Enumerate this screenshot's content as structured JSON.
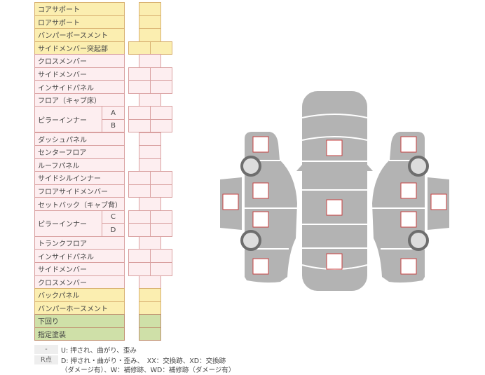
{
  "rows": [
    {
      "label": "コアサポート",
      "color": "yellow",
      "cells": 1
    },
    {
      "label": "ロアサポート",
      "color": "yellow",
      "cells": 1
    },
    {
      "label": "バンパーボースメント",
      "color": "yellow",
      "cells": 1
    },
    {
      "label": "サイドメンバー突起部",
      "color": "yellow",
      "cells": 2
    },
    {
      "label": "クロスメンバー",
      "color": "pink",
      "cells": 1
    },
    {
      "label": "サイドメンバー",
      "color": "pink",
      "cells": 2
    },
    {
      "label": "インサイドパネル",
      "color": "pink",
      "cells": 2
    },
    {
      "label": "フロア（キャブ床）",
      "color": "pink",
      "cells": 1
    },
    {
      "label": "ピラーインナー",
      "sub": "A",
      "color": "pink",
      "cells": 2
    },
    {
      "label": "",
      "sub": "B",
      "color": "pink",
      "cells": 2
    },
    {
      "label": "ダッシュパネル",
      "color": "pink",
      "cells": 1
    },
    {
      "label": "センターフロア",
      "color": "pink",
      "cells": 1
    },
    {
      "label": "ルーフパネル",
      "color": "pink",
      "cells": 1
    },
    {
      "label": "サイドシルインナー",
      "color": "pink",
      "cells": 2
    },
    {
      "label": "フロアサイドメンバー",
      "color": "pink",
      "cells": 2
    },
    {
      "label": "セットバック（キャブ背）",
      "color": "pink",
      "cells": 1
    },
    {
      "label": "ピラーインナー",
      "sub": "C",
      "color": "pink",
      "cells": 2
    },
    {
      "label": "",
      "sub": "D",
      "color": "pink",
      "cells": 2
    },
    {
      "label": "トランクフロア",
      "color": "pink",
      "cells": 1
    },
    {
      "label": "インサイドパネル",
      "color": "pink",
      "cells": 2
    },
    {
      "label": "サイドメンバー",
      "color": "pink",
      "cells": 2
    },
    {
      "label": "クロスメンバー",
      "color": "pink",
      "cells": 1
    },
    {
      "label": "バックパネル",
      "color": "yellow",
      "cells": 1
    },
    {
      "label": "バンパーホースメント",
      "color": "yellow",
      "cells": 1
    },
    {
      "label": "下回り",
      "color": "green",
      "cells": 1
    },
    {
      "label": "指定塗装",
      "color": "green",
      "cells": 1
    }
  ],
  "legend": [
    {
      "key": "-",
      "text": "U: 押され、曲がり、歪み"
    },
    {
      "key": "R点",
      "text": "D: 押され・曲がり・歪み、　XX：交換跡、XD：交換跡",
      "text2": "（ダメージ有）、W：補修跡、WD：補修跡（ダメージ有）"
    }
  ],
  "colors": {
    "body": "#b3b3b3",
    "check_border": "#c84040",
    "wheel": "#6e6e6e"
  }
}
